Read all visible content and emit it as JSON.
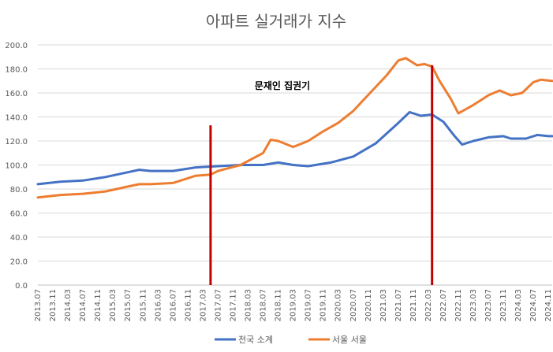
{
  "chart_data": {
    "type": "line",
    "title": "아파트 실거래가 지수",
    "xlabel": "",
    "ylabel": "",
    "ylim": [
      0,
      200
    ],
    "yticks": [
      "0.0",
      "20.0",
      "40.0",
      "60.0",
      "80.0",
      "100.0",
      "120.0",
      "140.0",
      "160.0",
      "180.0",
      "200.0"
    ],
    "ytick_values": [
      0,
      20,
      40,
      60,
      80,
      100,
      120,
      140,
      160,
      180,
      200
    ],
    "grid": true,
    "legend_position": "bottom",
    "x_start": "2013.07",
    "x_end": "2024.12",
    "xtick_labels": [
      "2013.07",
      "2013.11",
      "2014.03",
      "2014.07",
      "2014.11",
      "2015.03",
      "2015.07",
      "2015.11",
      "2016.03",
      "2016.07",
      "2016.11",
      "2017.03",
      "2017.07",
      "2017.11",
      "2018.03",
      "2018.07",
      "2018.11",
      "2019.03",
      "2019.07",
      "2019.11",
      "2020.03",
      "2020.07",
      "2020.11",
      "2021.03",
      "2021.07",
      "2021.11",
      "2022.03",
      "2022.07",
      "2022.11",
      "2023.03",
      "2023.07",
      "2023.11",
      "2024.03",
      "2024.07",
      "2024.11"
    ],
    "annotations": [
      {
        "text": "문재인 집권기",
        "from": "2017.05",
        "to": "2022.04"
      }
    ],
    "series": [
      {
        "name": "전국 소계",
        "color": "#4472C4",
        "points": [
          [
            "2013.07",
            84
          ],
          [
            "2014.01",
            86
          ],
          [
            "2014.07",
            87
          ],
          [
            "2015.01",
            90
          ],
          [
            "2015.07",
            94
          ],
          [
            "2015.10",
            96
          ],
          [
            "2016.01",
            95
          ],
          [
            "2016.07",
            95
          ],
          [
            "2017.01",
            98
          ],
          [
            "2017.07",
            99
          ],
          [
            "2018.01",
            100
          ],
          [
            "2018.07",
            100
          ],
          [
            "2018.11",
            102
          ],
          [
            "2019.03",
            100
          ],
          [
            "2019.07",
            99
          ],
          [
            "2020.01",
            102
          ],
          [
            "2020.07",
            107
          ],
          [
            "2021.01",
            118
          ],
          [
            "2021.07",
            135
          ],
          [
            "2021.10",
            144
          ],
          [
            "2022.01",
            141
          ],
          [
            "2022.04",
            142
          ],
          [
            "2022.07",
            136
          ],
          [
            "2022.10",
            124
          ],
          [
            "2022.12",
            117
          ],
          [
            "2023.03",
            120
          ],
          [
            "2023.07",
            123
          ],
          [
            "2023.11",
            124
          ],
          [
            "2024.01",
            122
          ],
          [
            "2024.05",
            122
          ],
          [
            "2024.08",
            125
          ],
          [
            "2024.11",
            124
          ],
          [
            "2024.12",
            124
          ]
        ]
      },
      {
        "name": "서울 서울",
        "color": "#ED7D31",
        "points": [
          [
            "2013.07",
            73
          ],
          [
            "2014.01",
            75
          ],
          [
            "2014.07",
            76
          ],
          [
            "2015.01",
            78
          ],
          [
            "2015.07",
            82
          ],
          [
            "2015.10",
            84
          ],
          [
            "2016.01",
            84
          ],
          [
            "2016.07",
            85
          ],
          [
            "2017.01",
            91
          ],
          [
            "2017.05",
            92
          ],
          [
            "2017.07",
            95
          ],
          [
            "2018.01",
            100
          ],
          [
            "2018.07",
            110
          ],
          [
            "2018.09",
            121
          ],
          [
            "2018.11",
            120
          ],
          [
            "2019.03",
            115
          ],
          [
            "2019.07",
            120
          ],
          [
            "2019.11",
            128
          ],
          [
            "2020.03",
            135
          ],
          [
            "2020.07",
            145
          ],
          [
            "2020.10",
            155
          ],
          [
            "2021.01",
            165
          ],
          [
            "2021.04",
            175
          ],
          [
            "2021.07",
            187
          ],
          [
            "2021.09",
            189
          ],
          [
            "2021.12",
            183
          ],
          [
            "2022.02",
            184
          ],
          [
            "2022.04",
            182
          ],
          [
            "2022.06",
            170
          ],
          [
            "2022.09",
            155
          ],
          [
            "2022.11",
            143
          ],
          [
            "2023.03",
            150
          ],
          [
            "2023.07",
            158
          ],
          [
            "2023.10",
            162
          ],
          [
            "2024.01",
            158
          ],
          [
            "2024.04",
            160
          ],
          [
            "2024.07",
            169
          ],
          [
            "2024.09",
            171
          ],
          [
            "2024.12",
            170
          ]
        ]
      }
    ]
  }
}
